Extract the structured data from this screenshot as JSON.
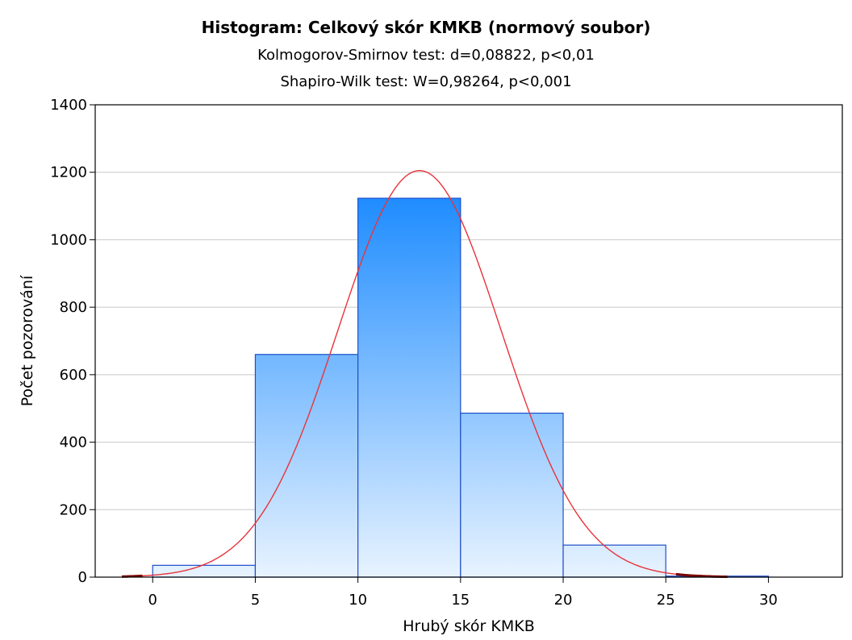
{
  "chart_data": {
    "type": "bar",
    "title": "Histogram: Celkový skór KMKB (normový soubor)",
    "subtitle_lines": [
      "Kolmogorov-Smirnov test: d=0,08822, p<0,01",
      "Shapiro-Wilk test: W=0,98264, p<0,001"
    ],
    "xlabel": "Hrubý skór KMKB",
    "ylabel": "Počet pozorování",
    "xlim": [
      -2.8,
      33.6
    ],
    "ylim": [
      0,
      1400
    ],
    "x_ticks": [
      0,
      5,
      10,
      15,
      20,
      25,
      30
    ],
    "x_tick_labels": [
      "0",
      "5",
      "10",
      "15",
      "20",
      "25",
      "30"
    ],
    "y_ticks": [
      0,
      200,
      400,
      600,
      800,
      1000,
      1200,
      1400
    ],
    "y_tick_labels": [
      "0",
      "200",
      "400",
      "600",
      "800",
      "1000",
      "1200",
      "1400"
    ],
    "bins": [
      {
        "from": 0,
        "to": 5,
        "count": 35
      },
      {
        "from": 5,
        "to": 10,
        "count": 660
      },
      {
        "from": 10,
        "to": 15,
        "count": 1123
      },
      {
        "from": 15,
        "to": 20,
        "count": 486
      },
      {
        "from": 20,
        "to": 25,
        "count": 95
      },
      {
        "from": 25,
        "to": 30,
        "count": 3
      }
    ],
    "normal_curve": {
      "mean": 13,
      "peak": 1205,
      "sd": 3.98,
      "x_range": [
        -1.5,
        28
      ]
    },
    "grid": true,
    "colors": {
      "bar_top": "#1e8cff",
      "bar_bottom": "#e8f3ff",
      "bar_edge": "#1f4fc9",
      "curve": "#e8333b",
      "grid": "#c8c8c8",
      "curve_tail": "#7a0000"
    }
  }
}
